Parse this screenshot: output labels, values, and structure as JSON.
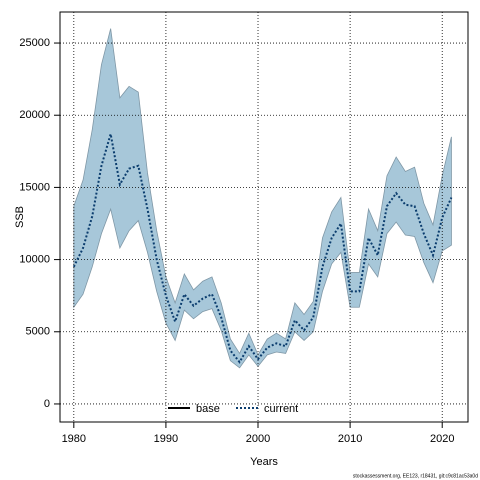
{
  "chart_data": {
    "type": "line",
    "xlabel": "Years",
    "ylabel": "SSB",
    "x": [
      1980,
      1981,
      1982,
      1983,
      1984,
      1985,
      1986,
      1987,
      1988,
      1989,
      1990,
      1991,
      1992,
      1993,
      1994,
      1995,
      1996,
      1997,
      1998,
      1999,
      2000,
      2001,
      2002,
      2003,
      2004,
      2005,
      2006,
      2007,
      2008,
      2009,
      2010,
      2011,
      2012,
      2013,
      2014,
      2015,
      2016,
      2017,
      2018,
      2019,
      2020,
      2021
    ],
    "series": [
      {
        "name": "current",
        "color": "#0b3d6e",
        "values": [
          9500,
          10800,
          13000,
          16500,
          18700,
          15200,
          16300,
          16500,
          13500,
          10000,
          7500,
          5700,
          7600,
          6800,
          7300,
          7600,
          6000,
          3700,
          2900,
          4000,
          3100,
          3900,
          4200,
          4000,
          5800,
          5100,
          6000,
          9500,
          11500,
          12500,
          7800,
          7800,
          11500,
          10300,
          13700,
          14600,
          13800,
          13700,
          11800,
          10300,
          12900,
          14300
        ]
      }
    ],
    "band": {
      "color": "#a7c7d9",
      "lower": [
        6700,
        7600,
        9500,
        11800,
        13500,
        10800,
        12000,
        12700,
        10500,
        7800,
        5600,
        4400,
        6500,
        5900,
        6400,
        6600,
        5100,
        3000,
        2500,
        3400,
        2600,
        3400,
        3600,
        3500,
        5000,
        4400,
        5000,
        7800,
        9700,
        10500,
        6700,
        6700,
        9700,
        8800,
        11800,
        12600,
        11700,
        11600,
        9800,
        8400,
        10600,
        11000
      ],
      "upper": [
        13700,
        15500,
        19000,
        23500,
        26000,
        21200,
        22000,
        21600,
        16000,
        12000,
        8800,
        7000,
        9000,
        7900,
        8500,
        8800,
        7000,
        4500,
        3500,
        4900,
        3400,
        4500,
        4900,
        4500,
        7000,
        6200,
        7100,
        11500,
        13300,
        14300,
        9100,
        9100,
        13500,
        12000,
        15800,
        17100,
        16100,
        16400,
        13900,
        12400,
        15800,
        18500
      ]
    },
    "legend": [
      {
        "name": "base",
        "color": "#000000"
      },
      {
        "name": "current",
        "color": "#0b3d6e"
      }
    ],
    "xlim": [
      1978.5,
      2022.8
    ],
    "ylim": [
      -1250,
      27150
    ],
    "xticks": [
      1980,
      1990,
      2000,
      2010,
      2020
    ],
    "yticks": [
      0,
      5000,
      10000,
      15000,
      20000,
      25000
    ],
    "grid": true,
    "footer": "stockassessment.org, EE123, r18431, git:c9c81ac53a0d"
  }
}
